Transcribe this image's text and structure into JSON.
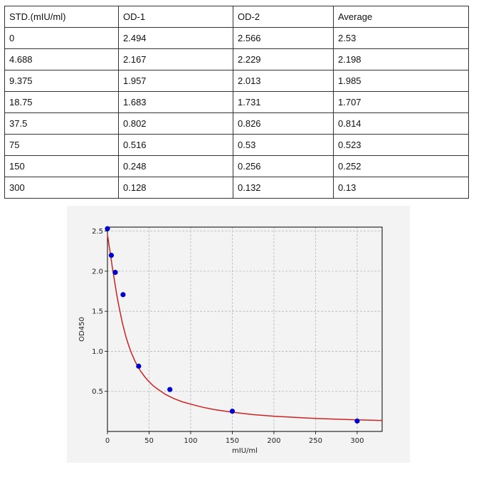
{
  "table": {
    "headers": [
      "STD.(mIU/ml)",
      "OD-1",
      "OD-2",
      "Average"
    ],
    "rows": [
      [
        "0",
        "2.494",
        "2.566",
        "2.53"
      ],
      [
        "4.688",
        "2.167",
        "2.229",
        "2.198"
      ],
      [
        "9.375",
        "1.957",
        "2.013",
        "1.985"
      ],
      [
        "18.75",
        "1.683",
        "1.731",
        "1.707"
      ],
      [
        "37.5",
        "0.802",
        "0.826",
        "0.814"
      ],
      [
        "75",
        "0.516",
        "0.53",
        "0.523"
      ],
      [
        "150",
        "0.248",
        "0.256",
        "0.252"
      ],
      [
        "300",
        "0.128",
        "0.132",
        "0.13"
      ]
    ]
  },
  "chart_data": {
    "type": "scatter",
    "xlabel": "mIU/ml",
    "ylabel": "OD450",
    "xlim": [
      0,
      330
    ],
    "ylim": [
      0.0,
      2.55
    ],
    "xticks": [
      0,
      50,
      100,
      150,
      200,
      250,
      300
    ],
    "yticks": [
      0.5,
      1.0,
      1.5,
      2.0,
      2.5
    ],
    "grid": true,
    "points": {
      "x": [
        0,
        4.688,
        9.375,
        18.75,
        37.5,
        75,
        150,
        300
      ],
      "y": [
        2.53,
        2.198,
        1.985,
        1.707,
        0.814,
        0.523,
        0.252,
        0.13
      ],
      "color": "#0000cc"
    },
    "fit_curve": {
      "color": "#cc2222",
      "x": [
        0,
        2,
        4,
        6,
        8,
        10,
        12,
        14,
        16,
        18,
        20,
        22,
        24,
        26,
        28,
        30,
        33,
        36,
        40,
        45,
        50,
        55,
        60,
        70,
        80,
        90,
        100,
        115,
        130,
        150,
        175,
        200,
        225,
        250,
        275,
        300,
        330
      ],
      "y": [
        2.46,
        2.32,
        2.18,
        2.04,
        1.91,
        1.78,
        1.66,
        1.55,
        1.45,
        1.35,
        1.27,
        1.19,
        1.12,
        1.06,
        1.0,
        0.95,
        0.88,
        0.82,
        0.75,
        0.68,
        0.62,
        0.57,
        0.53,
        0.46,
        0.41,
        0.37,
        0.34,
        0.3,
        0.27,
        0.24,
        0.21,
        0.19,
        0.175,
        0.163,
        0.153,
        0.145,
        0.137
      ]
    }
  }
}
